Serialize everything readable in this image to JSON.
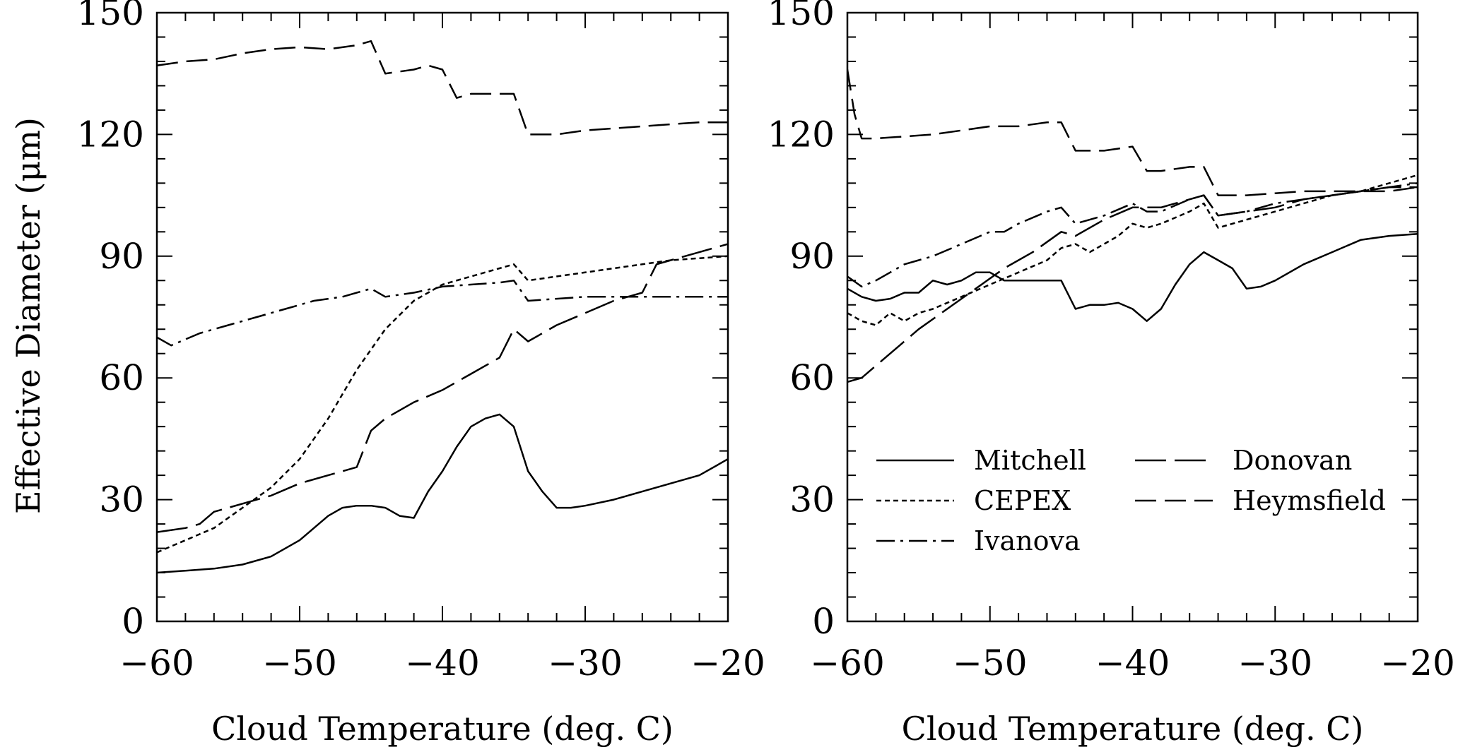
{
  "chart_data": [
    {
      "type": "line",
      "xlabel": "Cloud Temperature (deg. C)",
      "ylabel": "Effective Diameter (μm)",
      "xlim": [
        -60,
        -20
      ],
      "ylim": [
        0,
        150
      ],
      "xticks": [
        -60,
        -50,
        -40,
        -30,
        -20
      ],
      "xtick_labels": [
        "−60",
        "−50",
        "−40",
        "−30",
        "−20"
      ],
      "yticks": [
        0,
        30,
        60,
        90,
        120,
        150
      ],
      "ytick_labels": [
        "0",
        "30",
        "60",
        "90",
        "120",
        "150"
      ],
      "grid": false,
      "series": [
        {
          "name": "Mitchell",
          "style": "solid",
          "x": [
            -60,
            -58,
            -56,
            -54,
            -52,
            -50,
            -49,
            -48,
            -47,
            -46,
            -45,
            -44,
            -43,
            -42,
            -41,
            -40,
            -39,
            -38,
            -37,
            -36,
            -35,
            -34,
            -33,
            -32,
            -31,
            -30,
            -28,
            -26,
            -24,
            -22,
            -20
          ],
          "y": [
            12,
            12.5,
            13,
            14,
            16,
            20,
            23,
            26,
            28,
            28.5,
            28.5,
            28,
            26,
            25.5,
            32,
            37,
            43,
            48,
            50,
            51,
            48,
            37,
            32,
            28,
            28,
            28.5,
            30,
            32,
            34,
            36,
            40
          ]
        },
        {
          "name": "CEPEX",
          "style": "dotted",
          "x": [
            -60,
            -58,
            -56,
            -54,
            -52,
            -50,
            -48,
            -46,
            -44,
            -42,
            -40,
            -38,
            -36,
            -35,
            -34,
            -32,
            -30,
            -28,
            -26,
            -24,
            -22,
            -20
          ],
          "y": [
            17,
            20,
            23,
            28,
            33,
            40,
            50,
            62,
            72,
            79,
            83,
            85,
            87,
            88,
            84,
            85,
            86,
            87,
            88,
            89,
            89.5,
            90
          ]
        },
        {
          "name": "Ivanova",
          "style": "dashdot",
          "x": [
            -60,
            -59,
            -57,
            -55,
            -53,
            -51,
            -49,
            -47,
            -45,
            -44,
            -42,
            -40,
            -38,
            -36,
            -35,
            -34,
            -32,
            -30,
            -28,
            -26,
            -24,
            -22,
            -20
          ],
          "y": [
            70,
            68,
            71,
            73,
            75,
            77,
            79,
            80,
            82,
            80,
            81,
            82.5,
            83,
            83.5,
            84,
            79,
            79.5,
            80,
            80,
            80,
            80,
            80,
            80
          ]
        },
        {
          "name": "Donovan",
          "style": "longdash",
          "x": [
            -60,
            -58,
            -57,
            -56,
            -55,
            -54,
            -52,
            -50,
            -48,
            -46,
            -45,
            -44,
            -42,
            -40,
            -38,
            -36,
            -35,
            -34,
            -33,
            -32,
            -30,
            -28,
            -26,
            -25,
            -24,
            -22,
            -20
          ],
          "y": [
            22,
            23,
            24,
            27,
            28,
            29,
            31,
            34,
            36,
            38,
            47,
            50,
            54,
            57,
            61,
            65,
            72,
            69,
            71,
            73,
            76,
            79,
            81,
            88,
            89,
            91,
            93
          ]
        },
        {
          "name": "Heymsfield",
          "style": "dashed",
          "x": [
            -60,
            -58,
            -56,
            -54,
            -52,
            -50,
            -48,
            -46,
            -45,
            -44,
            -42,
            -41,
            -40,
            -39,
            -38,
            -36,
            -35,
            -34,
            -32,
            -30,
            -28,
            -26,
            -24,
            -22,
            -20
          ],
          "y": [
            137,
            138,
            138.5,
            140,
            141,
            141.5,
            141,
            142,
            143,
            135,
            136,
            137,
            136,
            129,
            130,
            130,
            130,
            120,
            120,
            121,
            121.5,
            122,
            122.5,
            123,
            123
          ]
        }
      ]
    },
    {
      "type": "line",
      "xlabel": "Cloud Temperature (deg. C)",
      "ylabel": "",
      "xlim": [
        -60,
        -20
      ],
      "ylim": [
        0,
        150
      ],
      "xticks": [
        -60,
        -50,
        -40,
        -30,
        -20
      ],
      "xtick_labels": [
        "−60",
        "−50",
        "−40",
        "−30",
        "−20"
      ],
      "yticks": [
        0,
        30,
        60,
        90,
        120,
        150
      ],
      "ytick_labels": [
        "0",
        "30",
        "60",
        "90",
        "120",
        "150"
      ],
      "grid": false,
      "legend": {
        "placement": "lower-center",
        "columns": [
          [
            "Mitchell",
            "CEPEX",
            "Ivanova"
          ],
          [
            "Donovan",
            "Heymsfield"
          ]
        ]
      },
      "series": [
        {
          "name": "Mitchell",
          "style": "solid",
          "x": [
            -60,
            -59,
            -58,
            -57,
            -56,
            -55,
            -54,
            -53,
            -52,
            -51,
            -50,
            -49,
            -48,
            -47,
            -46,
            -45,
            -44,
            -43,
            -42,
            -41,
            -40,
            -39,
            -38,
            -37,
            -36,
            -35,
            -34,
            -33,
            -32,
            -31,
            -30,
            -28,
            -26,
            -24,
            -22,
            -20
          ],
          "y": [
            82,
            80,
            79,
            79.5,
            81,
            81,
            84,
            83,
            84,
            86,
            86,
            84,
            84,
            84,
            84,
            84,
            77,
            78,
            78,
            78.5,
            77,
            74,
            77,
            83,
            88,
            91,
            89,
            87,
            82,
            82.5,
            84,
            88,
            91,
            94,
            95,
            95.5
          ]
        },
        {
          "name": "CEPEX",
          "style": "dotted",
          "x": [
            -60,
            -59,
            -58,
            -57,
            -56,
            -55,
            -54,
            -52,
            -50,
            -48,
            -46,
            -45,
            -44,
            -43,
            -42,
            -41,
            -40,
            -39,
            -38,
            -36,
            -35,
            -34,
            -32,
            -30,
            -28,
            -26,
            -24,
            -22,
            -20
          ],
          "y": [
            76,
            74,
            73,
            76,
            74,
            76,
            77,
            80,
            83,
            86,
            89,
            92,
            93,
            91,
            93,
            95,
            98,
            97,
            98,
            101,
            103,
            97,
            99,
            101,
            103,
            105,
            106,
            108,
            110
          ]
        },
        {
          "name": "Ivanova",
          "style": "dashdot",
          "x": [
            -60,
            -59,
            -58,
            -57,
            -56,
            -55,
            -54,
            -52,
            -50,
            -49,
            -48,
            -46,
            -45,
            -44,
            -43,
            -42,
            -40,
            -39,
            -38,
            -36,
            -35,
            -34,
            -32,
            -30,
            -28,
            -26,
            -24,
            -22,
            -20
          ],
          "y": [
            85,
            82.5,
            84,
            86,
            88,
            89,
            90,
            93,
            96,
            96,
            98,
            101,
            102,
            98,
            99,
            100,
            103,
            101,
            101,
            104,
            105,
            100,
            101,
            103,
            104,
            105,
            106,
            107,
            108
          ]
        },
        {
          "name": "Donovan",
          "style": "longdash",
          "x": [
            -60,
            -59,
            -57,
            -55,
            -53,
            -51,
            -49,
            -47,
            -45,
            -44,
            -42,
            -40,
            -38,
            -36,
            -35,
            -34,
            -32,
            -30,
            -28,
            -26,
            -24,
            -22,
            -20
          ],
          "y": [
            59,
            60,
            66,
            72,
            77,
            82,
            87,
            91,
            96,
            95,
            99,
            102,
            102,
            104,
            105,
            100,
            101,
            102,
            104,
            105,
            106,
            107,
            107
          ]
        },
        {
          "name": "Heymsfield",
          "style": "dashed",
          "x": [
            -60,
            -59.5,
            -59,
            -58,
            -56,
            -54,
            -52,
            -50,
            -48,
            -46,
            -45,
            -44,
            -42,
            -40,
            -39,
            -38,
            -36,
            -35,
            -34,
            -32,
            -30,
            -28,
            -26,
            -24,
            -22,
            -20
          ],
          "y": [
            136,
            125,
            119,
            119,
            119.5,
            120,
            121,
            122,
            122,
            123,
            123,
            116,
            116,
            117,
            111,
            111,
            112,
            112,
            105,
            105,
            105.5,
            106,
            106,
            106,
            106,
            107
          ]
        }
      ]
    }
  ]
}
